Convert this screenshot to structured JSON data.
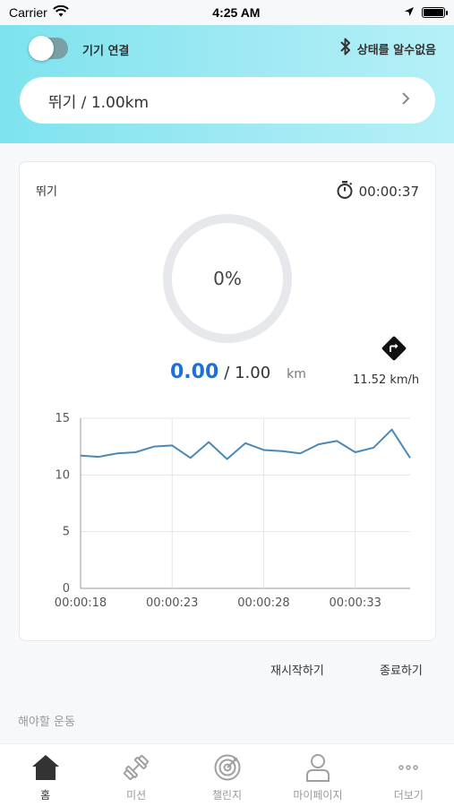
{
  "status_bar": {
    "carrier": "Carrier",
    "time": "4:25 AM"
  },
  "header": {
    "device_connect_label": "기기 연결",
    "bluetooth_status": "상태를 알수없음",
    "toggle_on": false,
    "selected_workout": "뛰기 / 1.00km"
  },
  "workout": {
    "type": "뛰기",
    "elapsed": "00:00:37",
    "progress_percent": 0,
    "progress_label": "0%",
    "distance_current": "0.00",
    "distance_total": "/ 1.00",
    "distance_unit": "km",
    "speed": "11.52 km/h"
  },
  "chart_data": {
    "type": "line",
    "x_tick_labels": [
      "00:00:18",
      "00:00:23",
      "00:00:28",
      "00:00:33"
    ],
    "y_tick_labels": [
      "15",
      "10",
      "5",
      "0"
    ],
    "ylim": [
      0,
      15
    ],
    "grid": true,
    "color": "#4a88b8",
    "values": [
      11.7,
      11.6,
      11.9,
      12.0,
      12.5,
      12.6,
      11.5,
      12.9,
      11.4,
      12.8,
      12.2,
      12.1,
      11.9,
      12.7,
      13.0,
      12.0,
      12.4,
      14.0,
      11.5
    ]
  },
  "actions": {
    "restart": "재시작하기",
    "finish": "종료하기"
  },
  "todo_label": "해야할 운동",
  "tabs": [
    {
      "label": "홈",
      "icon": "home-icon",
      "active": true
    },
    {
      "label": "미션",
      "icon": "dumbbell-icon",
      "active": false
    },
    {
      "label": "챌린지",
      "icon": "target-icon",
      "active": false
    },
    {
      "label": "마이페이지",
      "icon": "person-icon",
      "active": false
    },
    {
      "label": "더보기",
      "icon": "more-icon",
      "active": false
    }
  ],
  "colors": {
    "accent_blue": "#1e6fd9",
    "header_gradient_start": "#7de3ee",
    "header_gradient_end": "#b5f0f7"
  }
}
